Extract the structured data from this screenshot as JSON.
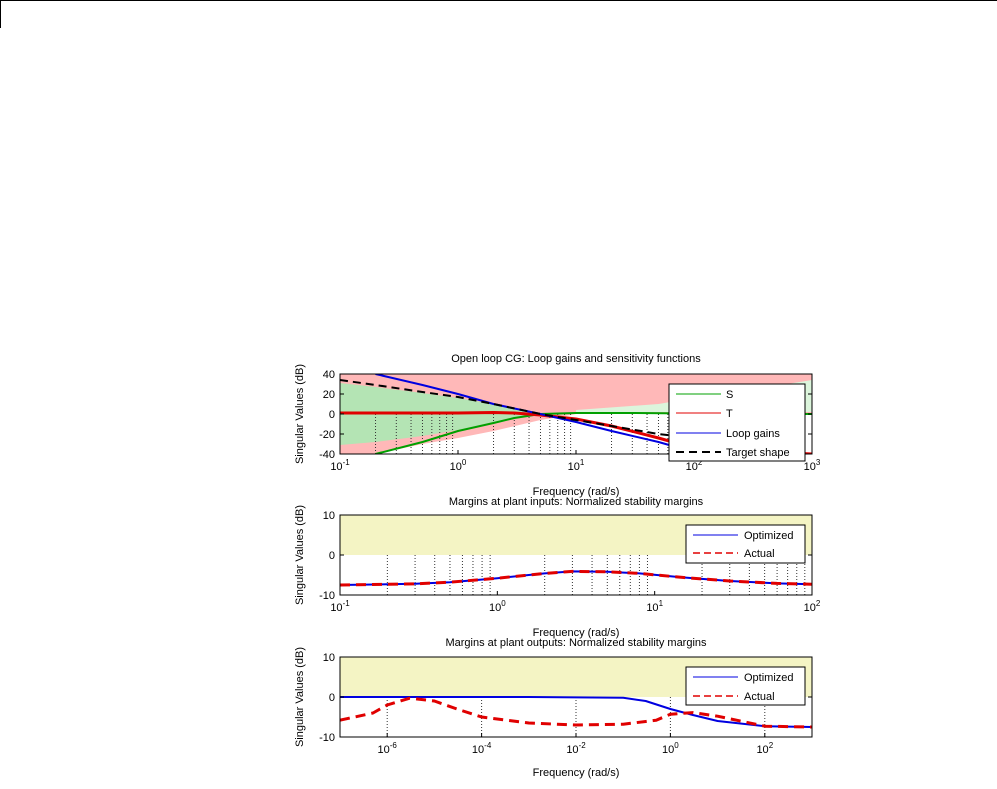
{
  "chart_data": [
    {
      "type": "line",
      "title": "Open loop CG: Loop gains and sensitivity functions",
      "xlabel": "Frequency (rad/s)",
      "ylabel": "Singular Values (dB)",
      "xscale": "log",
      "xlim": [
        0.1,
        1000
      ],
      "ylim": [
        -40,
        40
      ],
      "x_ticks": [
        {
          "value": 0.1,
          "base": "10",
          "exp": "-1"
        },
        {
          "value": 1,
          "base": "10",
          "exp": "0"
        },
        {
          "value": 10,
          "base": "10",
          "exp": "1"
        },
        {
          "value": 100,
          "base": "10",
          "exp": "2"
        },
        {
          "value": 1000,
          "base": "10",
          "exp": "3"
        }
      ],
      "y_ticks": [
        -40,
        -20,
        0,
        20,
        40
      ],
      "legend_position": "right",
      "shaded_regions": [
        {
          "color": "#ffb8b8",
          "x": [
            0.1,
            0.2,
            0.5,
            1,
            2,
            5,
            10,
            100,
            1000
          ],
          "y_low": [
            -40,
            -40,
            -30,
            -24,
            -17,
            -6,
            0,
            0,
            0
          ],
          "y_high": [
            40,
            40,
            40,
            40,
            40,
            40,
            40,
            40,
            40
          ]
        },
        {
          "color": "#b4e4b4",
          "x": [
            0.1,
            0.2,
            0.5,
            1,
            2,
            3,
            4.5,
            3,
            2,
            1,
            0.5,
            0.2,
            0.1
          ],
          "y_low": null,
          "y_high": null,
          "y": [
            -31,
            -28,
            -22,
            -16,
            -8,
            -3,
            0,
            5,
            10,
            16,
            21,
            27,
            31
          ]
        },
        {
          "color": "#dcf5dc",
          "x": [
            10,
            50,
            100,
            300,
            1000,
            1000,
            300,
            100,
            30,
            10
          ],
          "y_low": null,
          "y_high": null,
          "y": [
            4,
            10,
            16,
            24,
            34,
            2,
            2,
            2,
            2,
            2
          ]
        }
      ],
      "series": [
        {
          "name": "S",
          "color": "#00a000",
          "width": 2,
          "dash": "",
          "x": [
            0.2,
            0.5,
            1,
            2,
            3,
            5,
            10,
            30,
            100,
            1000
          ],
          "y": [
            -40,
            -28,
            -17,
            -9,
            -4,
            0,
            1,
            1,
            0.5,
            0
          ]
        },
        {
          "name": "T",
          "color": "#e00000",
          "width": 3,
          "dash": "",
          "x": [
            0.1,
            1,
            2,
            3,
            5,
            10,
            20,
            50,
            100,
            1000
          ],
          "y": [
            1,
            1,
            1.5,
            1,
            -1,
            -5,
            -12,
            -24,
            -34,
            -40
          ]
        },
        {
          "name": "Loop gains",
          "color": "#0000e0",
          "width": 2,
          "dash": "",
          "x": [
            0.2,
            0.5,
            1,
            2,
            5,
            10,
            20,
            50,
            100
          ],
          "y": [
            40,
            29,
            20,
            10,
            0,
            -8,
            -17,
            -28,
            -38
          ]
        },
        {
          "name": "Target shape",
          "color": "#000000",
          "width": 2,
          "dash": "8,5",
          "x": [
            0.1,
            0.2,
            0.5,
            1,
            2,
            5,
            10,
            20,
            50,
            100
          ],
          "y": [
            34,
            29,
            22,
            17,
            10,
            0,
            -6,
            -12,
            -20,
            -24
          ]
        }
      ],
      "vlines": [
        0.2,
        0.3,
        0.4,
        0.5,
        0.6,
        0.7,
        0.8,
        0.9,
        2,
        3,
        4,
        5,
        6,
        7,
        8,
        9,
        20,
        30,
        40,
        50,
        60,
        70,
        80,
        90
      ]
    },
    {
      "type": "line",
      "title": "Margins at plant inputs: Normalized stability margins",
      "xlabel": "Frequency (rad/s)",
      "ylabel": "Singular Values (dB)",
      "xscale": "log",
      "xlim": [
        0.1,
        100
      ],
      "ylim": [
        -10,
        10
      ],
      "x_ticks": [
        {
          "value": 0.1,
          "base": "10",
          "exp": "-1"
        },
        {
          "value": 1,
          "base": "10",
          "exp": "0"
        },
        {
          "value": 10,
          "base": "10",
          "exp": "1"
        },
        {
          "value": 100,
          "base": "10",
          "exp": "2"
        }
      ],
      "y_ticks": [
        -10,
        0,
        10
      ],
      "legend_position": "top-right",
      "shaded_regions": [
        {
          "color": "#f4f4c4",
          "x": [
            0.1,
            100
          ],
          "y_low": [
            0,
            0
          ],
          "y_high": [
            10,
            10
          ]
        }
      ],
      "series": [
        {
          "name": "Optimized",
          "color": "#0000e0",
          "width": 2,
          "dash": "",
          "x": [
            0.1,
            0.3,
            0.5,
            1,
            2,
            3,
            5,
            8,
            15,
            30,
            60,
            100
          ],
          "y": [
            -7.5,
            -7.2,
            -6.8,
            -5.8,
            -4.6,
            -4.1,
            -4.2,
            -4.6,
            -5.6,
            -6.5,
            -7.1,
            -7.3
          ]
        },
        {
          "name": "Actual",
          "color": "#e00000",
          "width": 3,
          "dash": "10,6",
          "x": [
            0.1,
            0.3,
            0.5,
            1,
            2,
            3,
            5,
            8,
            15,
            30,
            60,
            100
          ],
          "y": [
            -7.5,
            -7.2,
            -6.8,
            -5.8,
            -4.6,
            -4.1,
            -4.2,
            -4.6,
            -5.6,
            -6.5,
            -7.1,
            -7.3
          ]
        }
      ],
      "vlines": [
        0.2,
        0.3,
        0.4,
        0.5,
        0.6,
        0.7,
        0.8,
        0.9,
        2,
        3,
        4,
        5,
        6,
        7,
        8,
        9,
        20,
        30,
        40,
        50,
        60,
        70,
        80,
        90
      ]
    },
    {
      "type": "line",
      "title": "Margins at plant outputs: Normalized stability margins",
      "xlabel": "Frequency (rad/s)",
      "ylabel": "Singular Values (dB)",
      "xscale": "log",
      "xlim": [
        1e-07,
        1000
      ],
      "ylim": [
        -10,
        10
      ],
      "x_ticks": [
        {
          "value": 1e-06,
          "base": "10",
          "exp": "-6"
        },
        {
          "value": 0.0001,
          "base": "10",
          "exp": "-4"
        },
        {
          "value": 0.01,
          "base": "10",
          "exp": "-2"
        },
        {
          "value": 1,
          "base": "10",
          "exp": "0"
        },
        {
          "value": 100,
          "base": "10",
          "exp": "2"
        }
      ],
      "y_ticks": [
        -10,
        0,
        10
      ],
      "legend_position": "top-right",
      "shaded_regions": [
        {
          "color": "#f4f4c4",
          "x": [
            1e-07,
            1000
          ],
          "y_low": [
            0,
            0
          ],
          "y_high": [
            10,
            10
          ]
        }
      ],
      "series": [
        {
          "name": "Optimized",
          "color": "#0000e0",
          "width": 2,
          "dash": "",
          "x": [
            1e-07,
            0.001,
            0.1,
            0.3,
            1,
            3,
            10,
            100,
            1000
          ],
          "y": [
            0,
            0,
            -0.2,
            -1,
            -3,
            -4.5,
            -6,
            -7.3,
            -7.5
          ]
        },
        {
          "name": "Actual",
          "color": "#e00000",
          "width": 3,
          "dash": "10,6",
          "x": [
            1e-07,
            5e-07,
            1e-06,
            3e-06,
            1e-05,
            3e-05,
            0.0001,
            0.001,
            0.01,
            0.1,
            0.5,
            1,
            3,
            10,
            100,
            1000
          ],
          "y": [
            -5.8,
            -4,
            -2,
            -0.3,
            -1,
            -3,
            -5,
            -6.5,
            -7,
            -6.8,
            -5.8,
            -4.3,
            -3.9,
            -4.8,
            -7.3,
            -7.5
          ]
        }
      ],
      "vlines": [
        1e-06,
        0.0001,
        0.01,
        1,
        100
      ]
    }
  ]
}
